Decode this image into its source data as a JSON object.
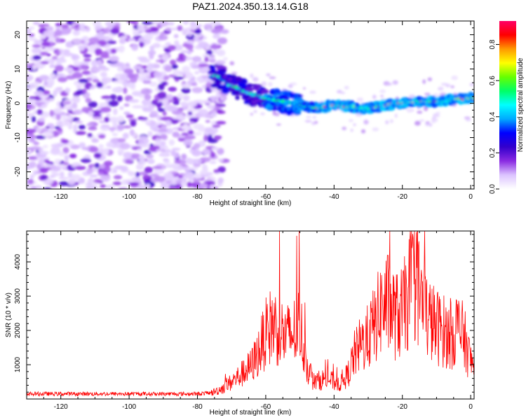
{
  "title": "PAZ1.2024.350.13.14.G18",
  "chart_data": [
    {
      "type": "heatmap",
      "xlabel": "Height of straight line (km)",
      "ylabel": "Frequency (Hz)",
      "xlim": [
        -130,
        1
      ],
      "ylim": [
        -25,
        24
      ],
      "x_ticks": [
        -120,
        -100,
        -80,
        -60,
        -40,
        -20,
        0
      ],
      "y_ticks": [
        -20,
        -10,
        0,
        10,
        20
      ],
      "colorbar": {
        "label": "Normalized spectral amplitude",
        "range": [
          0,
          0.93
        ],
        "ticks": [
          0.0,
          0.2,
          0.4,
          0.6,
          0.8
        ],
        "colormap": [
          "#ffffff",
          "#dcc4ff",
          "#8a2be2",
          "#3300cc",
          "#0000ff",
          "#00aaff",
          "#00ffff",
          "#00ff66",
          "#66ff00",
          "#ffff00",
          "#ff9900",
          "#ff0000",
          "#ff0066"
        ]
      },
      "ridge": {
        "x": [
          -74,
          -70,
          -65,
          -60,
          -55,
          -50,
          -45,
          -40,
          -35,
          -30,
          -25,
          -20,
          -15,
          -10,
          -5,
          0
        ],
        "y": [
          8,
          5,
          3,
          1.5,
          0.5,
          -0.5,
          -1.5,
          -0.5,
          -1,
          -1.5,
          -0.5,
          0,
          0.5,
          0.5,
          1,
          1.5
        ]
      },
      "noise_region_x": [
        -130,
        -74
      ]
    },
    {
      "type": "line",
      "xlabel": "Height of straight line (km)",
      "ylabel": "SNR (10 * v/v)",
      "xlim": [
        -130,
        1
      ],
      "ylim": [
        0,
        4900
      ],
      "x_ticks": [
        -120,
        -100,
        -80,
        -60,
        -40,
        -20,
        0
      ],
      "y_ticks": [
        1000,
        2000,
        3000,
        4000
      ],
      "series": [
        {
          "color": "#ff0000",
          "x": [
            -130,
            -125,
            -120,
            -115,
            -110,
            -105,
            -100,
            -95,
            -90,
            -85,
            -80,
            -76,
            -74,
            -72,
            -70,
            -68,
            -66,
            -64,
            -62,
            -60,
            -58,
            -56,
            -54,
            -52,
            -50,
            -48,
            -46,
            -44,
            -42,
            -40,
            -38,
            -36,
            -34,
            -32,
            -30,
            -28,
            -26,
            -24,
            -22,
            -20,
            -18,
            -16,
            -14,
            -12,
            -10,
            -8,
            -6,
            -4,
            -2,
            0,
            1
          ],
          "y": [
            150,
            150,
            150,
            150,
            150,
            150,
            150,
            150,
            150,
            150,
            150,
            180,
            250,
            350,
            500,
            650,
            800,
            1000,
            1400,
            1900,
            2200,
            2000,
            1800,
            1900,
            2200,
            1000,
            500,
            550,
            600,
            500,
            450,
            700,
            1300,
            1600,
            1800,
            2200,
            2700,
            2800,
            2400,
            2500,
            3100,
            3500,
            2700,
            2300,
            2100,
            2000,
            1800,
            2100,
            1800,
            1100,
            1000
          ]
        }
      ]
    }
  ]
}
